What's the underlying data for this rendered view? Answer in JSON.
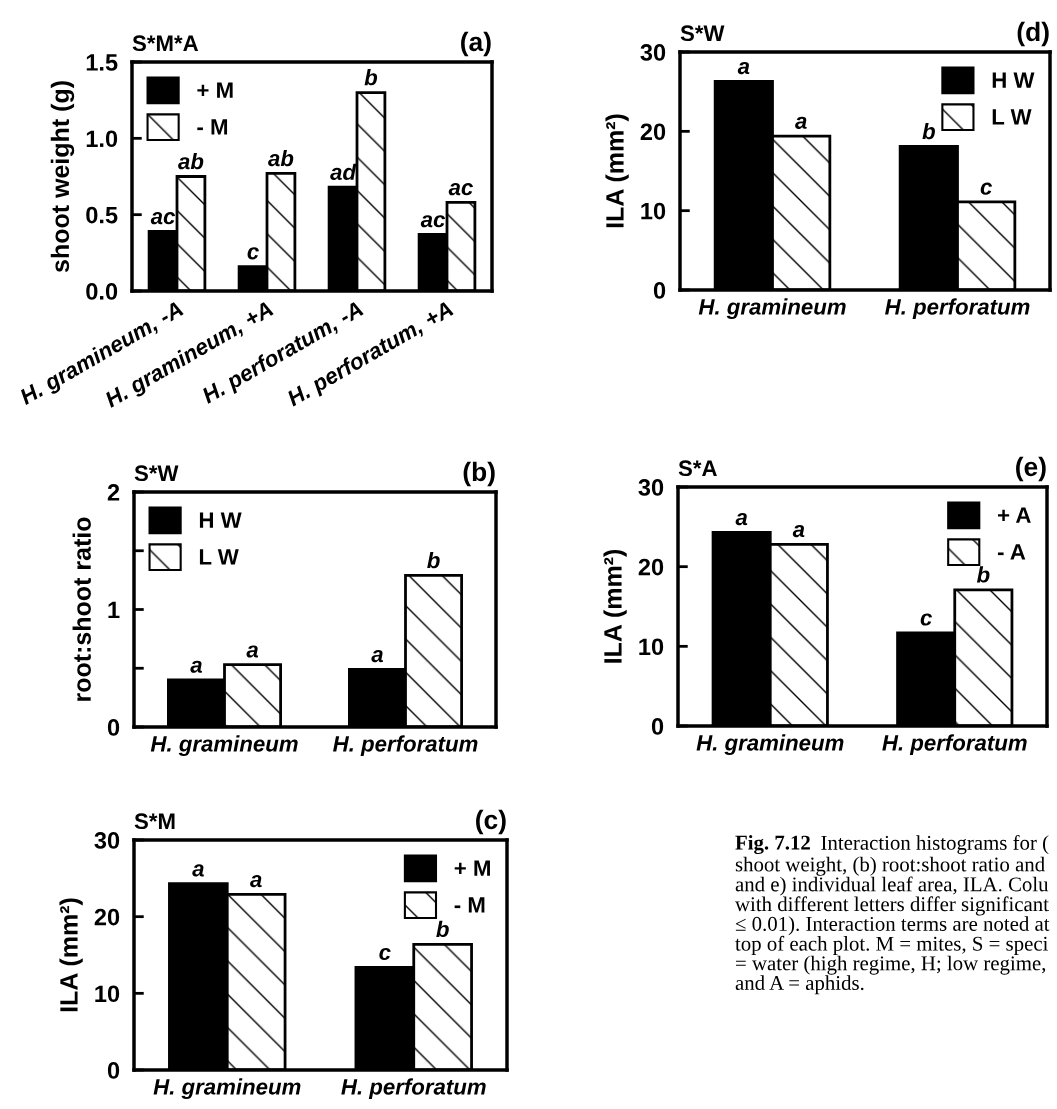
{
  "chart_data": [
    {
      "type": "bar",
      "title": "(a)",
      "subtitle": "S*M*A",
      "ylabel": "shoot weight (g)",
      "categories": [
        "H. gramineum, -A",
        "H. gramineum, +A",
        "H. perforatum, -A",
        "H. perforatum, +A"
      ],
      "ylim": [
        0,
        1.5
      ],
      "yticks": [
        {
          "value": 0,
          "label": "0.0"
        },
        0.5,
        {
          "value": 1,
          "label": "1.0"
        },
        1.5
      ],
      "legend": "top left",
      "series": [
        {
          "name": "+ M",
          "color": "#000000",
          "values": [
            0.39,
            0.16,
            0.68,
            0.37
          ],
          "value_labels": [
            "ac",
            "c",
            "ad",
            "ac"
          ]
        },
        {
          "name": "- M",
          "color": "#000000",
          "values": [
            0.75,
            0.77,
            1.3,
            0.58
          ],
          "value_labels": [
            "ab",
            "ab",
            "b",
            "ac"
          ]
        }
      ]
    },
    {
      "type": "bar",
      "title": "(d)",
      "subtitle": "S*W",
      "ylabel": "ILA (mm²)",
      "categories": [
        "H. gramineum",
        "H. perforatum"
      ],
      "ylim": [
        0,
        30
      ],
      "yticks": [
        0,
        10,
        20,
        30
      ],
      "legend": "top right",
      "series": [
        {
          "name": "H W",
          "color": "#000000",
          "values": [
            26.3,
            18.1
          ],
          "value_labels": [
            "a",
            "b"
          ]
        },
        {
          "name": "L W",
          "color": "#000000",
          "values": [
            19.4,
            11.1
          ],
          "value_labels": [
            "a",
            "c"
          ]
        }
      ]
    },
    {
      "type": "bar",
      "title": "(b)",
      "subtitle": "S*W",
      "ylabel": "root:shoot ratio",
      "categories": [
        "H. gramineum",
        "H. perforatum"
      ],
      "ylim": [
        0,
        2
      ],
      "yticks": [
        0,
        {
          "value": 0.5,
          "label": null
        },
        1,
        {
          "value": 1.5,
          "label": null
        },
        2
      ],
      "legend": "top left",
      "series": [
        {
          "name": "H W",
          "color": "#000000",
          "values": [
            0.4,
            0.49
          ],
          "value_labels": [
            "a",
            "a"
          ]
        },
        {
          "name": "L W",
          "color": "#000000",
          "values": [
            0.53,
            1.29
          ],
          "value_labels": [
            "a",
            "b"
          ]
        }
      ]
    },
    {
      "type": "bar",
      "title": "(e)",
      "subtitle": "S*A",
      "ylabel": "ILA (mm²)",
      "categories": [
        "H. gramineum",
        "H. perforatum"
      ],
      "ylim": [
        0,
        30
      ],
      "yticks": [
        0,
        10,
        20,
        30
      ],
      "legend": "top right",
      "series": [
        {
          "name": "+ A",
          "color": "#000000",
          "values": [
            24.3,
            11.7
          ],
          "value_labels": [
            "a",
            "c"
          ]
        },
        {
          "name": "- A",
          "color": "#000000",
          "values": [
            22.8,
            17.1
          ],
          "value_labels": [
            "a",
            "b"
          ]
        }
      ]
    },
    {
      "type": "bar",
      "title": "(c)",
      "subtitle": "S*M",
      "ylabel": "ILA (mm²)",
      "categories": [
        "H. gramineum",
        "H. perforatum"
      ],
      "ylim": [
        0,
        30
      ],
      "yticks": [
        0,
        10,
        20,
        30
      ],
      "legend": "top right",
      "series": [
        {
          "name": "+ M",
          "color": "#000000",
          "values": [
            24.3,
            13.4
          ],
          "value_labels": [
            "a",
            "c"
          ]
        },
        {
          "name": "- M",
          "color": "#000000",
          "values": [
            22.9,
            16.4
          ],
          "value_labels": [
            "a",
            "b"
          ]
        }
      ]
    },
    {
      "type": "other",
      "annotations": [
        "Fig. 7.12",
        "Interaction histograms for (",
        "shoot weight, (b) root:shoot ratio and\nand e) individual leaf area, ILA. Colu\nwith different letters differ significant\n≤ 0.01). Interaction terms are noted at\ntop of each plot. M = mites, S = speci\n= water (high regime, H; low regime,\nand A = aphids."
      ]
    }
  ]
}
